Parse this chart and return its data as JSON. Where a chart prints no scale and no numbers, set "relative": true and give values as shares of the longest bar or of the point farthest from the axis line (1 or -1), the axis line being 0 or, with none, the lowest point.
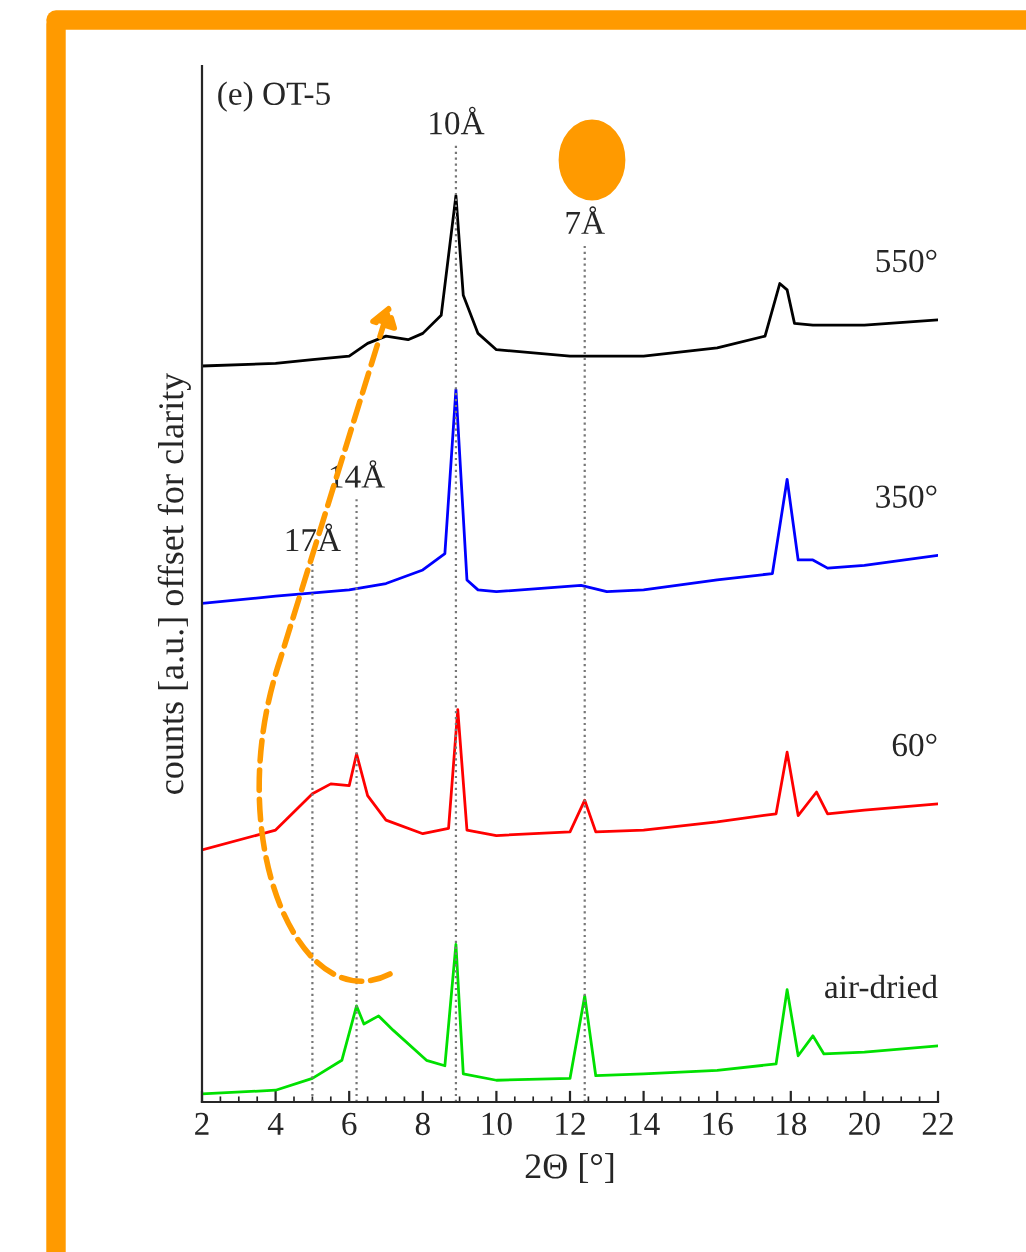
{
  "chart_data": {
    "type": "line",
    "title": "(e) OT-5",
    "xlabel": "2Θ [°]",
    "ylabel": "counts [a.u.] offset for clarity",
    "relative": true,
    "legend": false,
    "tick_labels": "x",
    "xlim": [
      2,
      22
    ],
    "xticks": [
      2,
      4,
      6,
      8,
      10,
      12,
      14,
      16,
      18,
      20,
      22
    ],
    "ref_lines": [
      {
        "axis": "x",
        "value": 5.0,
        "label": "17Å",
        "line_style": "dotted"
      },
      {
        "axis": "x",
        "value": 6.2,
        "label": "14Å",
        "line_style": "dotted"
      },
      {
        "axis": "x",
        "value": 8.9,
        "label": "10Å",
        "line_style": "dotted"
      },
      {
        "axis": "x",
        "value": 12.4,
        "label": "7Å",
        "line_style": "dotted"
      }
    ],
    "series": [
      {
        "name": "550°",
        "color": "#000000",
        "x": [
          2,
          4,
          5,
          6,
          6.5,
          7,
          7.6,
          8,
          8.5,
          8.9,
          9.1,
          9.5,
          10,
          12,
          14,
          16,
          17.3,
          17.7,
          17.9,
          18.1,
          18.6,
          20,
          22
        ],
        "values": [
          0.812,
          0.815,
          0.819,
          0.823,
          0.837,
          0.845,
          0.841,
          0.848,
          0.868,
          1.0,
          0.89,
          0.848,
          0.83,
          0.823,
          0.823,
          0.832,
          0.845,
          0.903,
          0.896,
          0.859,
          0.857,
          0.857,
          0.863
        ]
      },
      {
        "name": "350°",
        "color": "#0000ff",
        "x": [
          2,
          4,
          6,
          7,
          8,
          8.6,
          8.9,
          9.2,
          9.5,
          10,
          12.3,
          13,
          14,
          16,
          17.5,
          17.9,
          18.2,
          18.6,
          19,
          20,
          22
        ],
        "values": [
          0.55,
          0.558,
          0.565,
          0.572,
          0.587,
          0.605,
          0.786,
          0.576,
          0.565,
          0.563,
          0.57,
          0.563,
          0.565,
          0.576,
          0.583,
          0.687,
          0.598,
          0.598,
          0.589,
          0.592,
          0.603
        ]
      },
      {
        "name": "60°",
        "color": "#ff0000",
        "x": [
          2,
          4,
          5,
          5.5,
          6,
          6.2,
          6.5,
          7,
          8,
          8.7,
          8.95,
          9.2,
          10,
          12,
          12.4,
          12.7,
          14,
          16,
          17.6,
          17.9,
          18.2,
          18.7,
          19,
          20,
          22
        ],
        "values": [
          0.278,
          0.3,
          0.34,
          0.351,
          0.349,
          0.384,
          0.338,
          0.311,
          0.296,
          0.302,
          0.433,
          0.3,
          0.294,
          0.298,
          0.333,
          0.298,
          0.3,
          0.309,
          0.318,
          0.386,
          0.316,
          0.342,
          0.318,
          0.322,
          0.329
        ]
      },
      {
        "name": "air-dried",
        "color": "#00e000",
        "x": [
          2,
          4,
          5,
          5.8,
          6.2,
          6.4,
          6.8,
          7.2,
          8.1,
          8.6,
          8.9,
          9.1,
          10,
          12,
          12.4,
          12.7,
          14,
          16,
          17.6,
          17.9,
          18.2,
          18.6,
          18.9,
          20,
          22
        ],
        "values": [
          0.009,
          0.013,
          0.026,
          0.046,
          0.106,
          0.086,
          0.095,
          0.079,
          0.046,
          0.04,
          0.174,
          0.031,
          0.024,
          0.026,
          0.117,
          0.029,
          0.031,
          0.035,
          0.042,
          0.124,
          0.051,
          0.073,
          0.053,
          0.055,
          0.062
        ]
      }
    ]
  }
}
